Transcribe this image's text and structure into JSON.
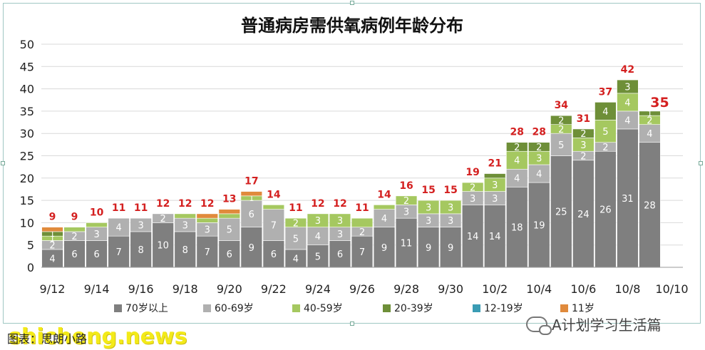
{
  "chart_data": {
    "type": "bar",
    "stacked": true,
    "title": "普通病房需供氧病例年龄分布",
    "categories": [
      "9/12",
      "9/13",
      "9/14",
      "9/15",
      "9/16",
      "9/17",
      "9/18",
      "9/19",
      "9/20",
      "9/21",
      "9/22",
      "9/23",
      "9/24",
      "9/25",
      "9/26",
      "9/27",
      "9/28",
      "9/29",
      "9/30",
      "10/1",
      "10/2",
      "10/3",
      "10/4",
      "10/5",
      "10/6",
      "10/7",
      "10/8",
      "10/9"
    ],
    "x_tick_labels": [
      "9/12",
      "9/14",
      "9/16",
      "9/18",
      "9/20",
      "9/22",
      "9/24",
      "9/26",
      "9/28",
      "9/30",
      "10/2",
      "10/4",
      "10/6",
      "10/8",
      "10/10"
    ],
    "ylim": [
      0,
      50
    ],
    "y_ticks": [
      0,
      5,
      10,
      15,
      20,
      25,
      30,
      35,
      40,
      45,
      50
    ],
    "grid": true,
    "legend_position": "bottom",
    "series": [
      {
        "name": "70岁以上",
        "color": "#7f7f7f",
        "values": [
          4,
          6,
          6,
          7,
          8,
          10,
          8,
          7,
          6,
          9,
          6,
          4,
          5,
          6,
          7,
          9,
          11,
          9,
          9,
          14,
          14,
          18,
          19,
          25,
          24,
          26,
          31,
          28
        ]
      },
      {
        "name": "60-69岁",
        "color": "#b0b0b0",
        "values": [
          2,
          2,
          3,
          4,
          3,
          2,
          3,
          3,
          5,
          6,
          7,
          5,
          4,
          3,
          2,
          4,
          3,
          3,
          3,
          3,
          3,
          4,
          4,
          5,
          2,
          2,
          4,
          4
        ]
      },
      {
        "name": "40-59岁",
        "color": "#a5c860",
        "values": [
          1,
          1,
          1,
          0,
          0,
          0,
          1,
          1,
          1,
          1,
          1,
          2,
          3,
          3,
          2,
          1,
          2,
          3,
          3,
          2,
          3,
          4,
          3,
          2,
          3,
          5,
          4,
          2
        ]
      },
      {
        "name": "20-39岁",
        "color": "#6e8f38",
        "values": [
          1,
          0,
          0,
          0,
          0,
          0,
          0,
          0,
          0,
          0,
          0,
          0,
          0,
          0,
          0,
          0,
          0,
          0,
          0,
          0,
          1,
          2,
          2,
          2,
          2,
          4,
          3,
          1
        ]
      },
      {
        "name": "12-19岁",
        "color": "#3a9cb4",
        "values": [
          0,
          0,
          0,
          0,
          0,
          0,
          0,
          0,
          0,
          0,
          0,
          0,
          0,
          0,
          0,
          0,
          0,
          0,
          0,
          0,
          0,
          0,
          0,
          0,
          0,
          0,
          0,
          0
        ]
      },
      {
        "name": "11岁",
        "color": "#e08a3c",
        "values": [
          1,
          0,
          0,
          0,
          0,
          0,
          0,
          1,
          1,
          1,
          0,
          0,
          0,
          0,
          0,
          0,
          0,
          0,
          0,
          0,
          0,
          0,
          0,
          0,
          0,
          0,
          0,
          0
        ]
      }
    ],
    "segment_labels": [
      [
        "4",
        "2",
        "1",
        "1",
        null,
        null
      ],
      [
        "6",
        "2",
        null,
        null,
        null,
        null
      ],
      [
        "6",
        "3",
        null,
        null,
        null,
        null
      ],
      [
        "7",
        "4",
        null,
        null,
        null,
        null
      ],
      [
        "8",
        "3",
        null,
        null,
        null,
        null
      ],
      [
        "10",
        "2",
        null,
        null,
        null,
        null
      ],
      [
        "8",
        "3",
        null,
        null,
        null,
        null
      ],
      [
        "7",
        "3",
        null,
        null,
        null,
        null
      ],
      [
        "6",
        "5",
        null,
        null,
        null,
        null
      ],
      [
        "9",
        "6",
        "1",
        null,
        null,
        null
      ],
      [
        "6",
        "7",
        null,
        null,
        null,
        null
      ],
      [
        "4",
        "5",
        "2",
        null,
        null,
        null
      ],
      [
        "5",
        "4",
        "3",
        null,
        null,
        null
      ],
      [
        "6",
        "3",
        "3",
        null,
        null,
        null
      ],
      [
        "7",
        "2",
        null,
        null,
        null,
        null
      ],
      [
        "9",
        "4",
        null,
        null,
        null,
        null
      ],
      [
        "11",
        "3",
        "2",
        null,
        null,
        null
      ],
      [
        "9",
        "3",
        "3",
        null,
        null,
        null
      ],
      [
        "9",
        "3",
        "3",
        null,
        null,
        null
      ],
      [
        "14",
        "3",
        "2",
        null,
        null,
        null
      ],
      [
        "14",
        "3",
        "3",
        null,
        null,
        null
      ],
      [
        "18",
        "4",
        "4",
        "2",
        null,
        null
      ],
      [
        "19",
        "4",
        "3",
        "2",
        null,
        null
      ],
      [
        "25",
        "5",
        "2",
        "2",
        null,
        null
      ],
      [
        "24",
        "2",
        "3",
        "2",
        null,
        null
      ],
      [
        "26",
        "2",
        "5",
        "4",
        null,
        null
      ],
      [
        "31",
        "4",
        "4",
        "3",
        null,
        null
      ],
      [
        "28",
        "4",
        "2",
        "1",
        null,
        null
      ]
    ],
    "totals": [
      9,
      9,
      10,
      11,
      11,
      12,
      12,
      12,
      13,
      17,
      14,
      11,
      12,
      12,
      11,
      14,
      16,
      15,
      15,
      19,
      21,
      28,
      28,
      34,
      31,
      37,
      42,
      35
    ],
    "highlight_total_index": 27,
    "total_color": "#d42020"
  },
  "footer": {
    "caption": "图表：思朗小路",
    "wechat_label": "A计划学习生活篇",
    "watermark": "shicheng.news"
  }
}
